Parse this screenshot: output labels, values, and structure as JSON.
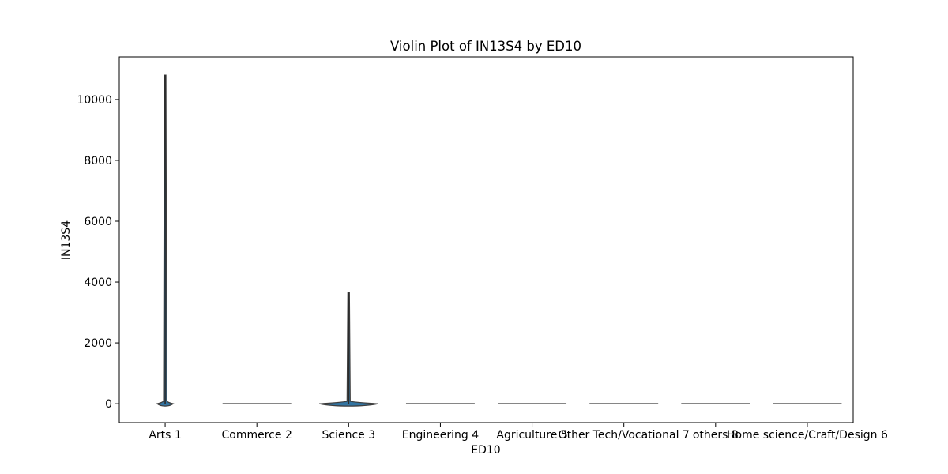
{
  "chart_data": {
    "type": "violin",
    "title": "Violin Plot of IN13S4 by ED10",
    "xlabel": "ED10",
    "ylabel": "IN13S4",
    "ylim": [
      -620,
      11400
    ],
    "yticks": [
      0,
      2000,
      4000,
      6000,
      8000,
      10000
    ],
    "grid": false,
    "categories": [
      "Arts 1",
      "Commerce 2",
      "Science 3",
      "Engineering 4",
      "Agriculture 5",
      "Other Tech/Vocational 7",
      "others 8",
      "Home science/Craft/Design 6"
    ],
    "series": [
      {
        "category": "Arts 1",
        "min": 0,
        "max": 10800,
        "bulk_max": 100,
        "density_width": 0.22
      },
      {
        "category": "Commerce 2",
        "min": 0,
        "max": 0,
        "bulk_max": 0,
        "density_width": 0.8
      },
      {
        "category": "Science 3",
        "min": 0,
        "max": 3650,
        "bulk_max": 80,
        "density_width": 0.8
      },
      {
        "category": "Engineering 4",
        "min": 0,
        "max": 0,
        "bulk_max": 0,
        "density_width": 0.8
      },
      {
        "category": "Agriculture 5",
        "min": 0,
        "max": 0,
        "bulk_max": 0,
        "density_width": 0.8
      },
      {
        "category": "Other Tech/Vocational 7",
        "min": 0,
        "max": 0,
        "bulk_max": 0,
        "density_width": 0.8
      },
      {
        "category": "others 8",
        "min": 0,
        "max": 0,
        "bulk_max": 0,
        "density_width": 0.8
      },
      {
        "category": "Home science/Craft/Design 6",
        "min": 0,
        "max": 0,
        "bulk_max": 0,
        "density_width": 0.8
      }
    ],
    "colors": {
      "violin_fill": "#3274a1",
      "violin_edge": "#3d3d3d",
      "axes": "#000000"
    }
  }
}
